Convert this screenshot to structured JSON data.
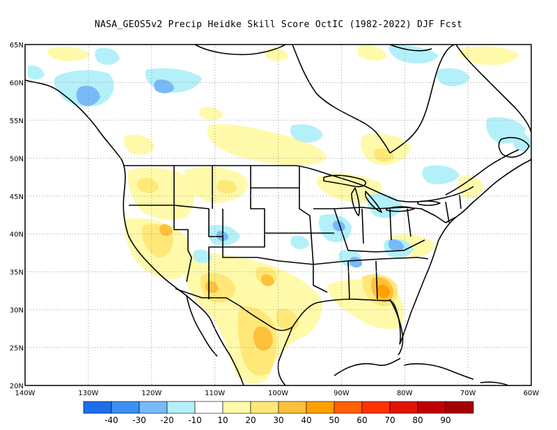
{
  "title": "NASA_GEOS5v2 Precip Heidke Skill Score OctIC (1982-2022) DJF Fcst",
  "map": {
    "lon_range": [
      -140,
      -60
    ],
    "lat_range": [
      20,
      65
    ],
    "lat_ticks": [
      {
        "value": 65,
        "label": "65N"
      },
      {
        "value": 60,
        "label": "60N"
      },
      {
        "value": 55,
        "label": "55N"
      },
      {
        "value": 50,
        "label": "50N"
      },
      {
        "value": 45,
        "label": "45N"
      },
      {
        "value": 40,
        "label": "40N"
      },
      {
        "value": 35,
        "label": "35N"
      },
      {
        "value": 30,
        "label": "30N"
      },
      {
        "value": 25,
        "label": "25N"
      },
      {
        "value": 20,
        "label": "20N"
      }
    ],
    "lon_ticks": [
      {
        "value": -140,
        "label": "140W"
      },
      {
        "value": -130,
        "label": "130W"
      },
      {
        "value": -120,
        "label": "120W"
      },
      {
        "value": -110,
        "label": "110W"
      },
      {
        "value": -100,
        "label": "100W"
      },
      {
        "value": -90,
        "label": "90W"
      },
      {
        "value": -80,
        "label": "80W"
      },
      {
        "value": -70,
        "label": "70W"
      },
      {
        "value": -60,
        "label": "60W"
      }
    ],
    "grid": "dotted"
  },
  "colorbar": {
    "colors": [
      "#1e6eeb",
      "#3c8ff0",
      "#78b9fa",
      "#b4f0fa",
      "#ffffff",
      "#fffaaa",
      "#ffe878",
      "#ffc03c",
      "#ffa000",
      "#ff6000",
      "#ff3200",
      "#e11400",
      "#c00000",
      "#a50000"
    ],
    "labels": [
      "-40",
      "-30",
      "-20",
      "-10",
      "10",
      "20",
      "30",
      "40",
      "50",
      "60",
      "70",
      "80",
      "90"
    ]
  }
}
